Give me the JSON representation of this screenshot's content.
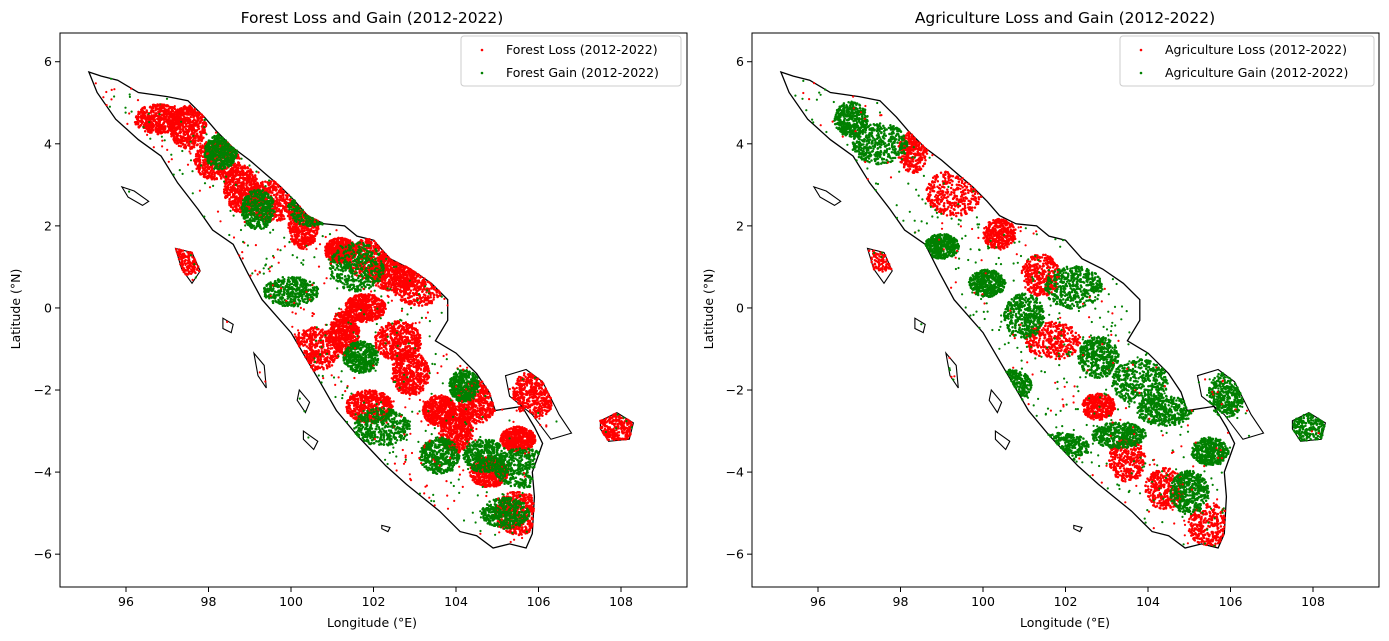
{
  "figure": {
    "panels": [
      {
        "id": "forest",
        "title": "Forest Loss and Gain (2012-2022)",
        "xlabel": "Longitude (°E)",
        "ylabel": "Latitude (°N)",
        "legend": [
          {
            "label": "Forest Loss (2012-2022)",
            "color": "#ff0000"
          },
          {
            "label": "Forest Gain (2012-2022)",
            "color": "#008000"
          }
        ]
      },
      {
        "id": "agriculture",
        "title": "Agriculture Loss and Gain (2012-2022)",
        "xlabel": "Longitude (°E)",
        "ylabel": "Latitude (°N)",
        "legend": [
          {
            "label": "Agriculture Loss (2012-2022)",
            "color": "#ff0000"
          },
          {
            "label": "Agriculture Gain (2012-2022)",
            "color": "#008000"
          }
        ]
      }
    ]
  },
  "chart_data": [
    {
      "type": "scatter",
      "title": "Forest Loss and Gain (2012-2022)",
      "xlabel": "Longitude (°E)",
      "ylabel": "Latitude (°N)",
      "xlim": [
        94.4,
        109.6
      ],
      "ylim": [
        -6.8,
        6.7
      ],
      "xticks": [
        96,
        98,
        100,
        102,
        104,
        106,
        108
      ],
      "yticks": [
        -6,
        -4,
        -2,
        0,
        2,
        4,
        6
      ],
      "xtick_labels": [
        "96",
        "98",
        "100",
        "102",
        "104",
        "106",
        "108"
      ],
      "ytick_labels": [
        "−6",
        "−4",
        "−2",
        "0",
        "2",
        "4",
        "6"
      ],
      "grid": false,
      "legend_position": "top-right",
      "loss_fraction": 0.5,
      "background_map": "Sumatra coastline outline",
      "series": [
        {
          "name": "Forest Loss (2012-2022)",
          "color": "#ff0000",
          "marker": "point",
          "clusters": [
            [
              96.8,
              4.6
            ],
            [
              97.5,
              4.4
            ],
            [
              98.2,
              3.6
            ],
            [
              98.8,
              2.9
            ],
            [
              99.5,
              2.6
            ],
            [
              100.3,
              2.0
            ],
            [
              101.2,
              1.4
            ],
            [
              102.0,
              1.2
            ],
            [
              102.5,
              0.9
            ],
            [
              103.1,
              0.6
            ],
            [
              101.8,
              0.0
            ],
            [
              101.3,
              -0.6
            ],
            [
              100.6,
              -1.0
            ],
            [
              102.6,
              -0.8
            ],
            [
              102.9,
              -1.6
            ],
            [
              101.9,
              -2.4
            ],
            [
              103.6,
              -2.5
            ],
            [
              104.5,
              -2.3
            ],
            [
              104.0,
              -3.0
            ],
            [
              105.5,
              -3.2
            ],
            [
              104.8,
              -4.0
            ],
            [
              105.5,
              -5.0
            ],
            [
              97.4,
              1.3
            ],
            [
              105.9,
              -2.1
            ],
            [
              107.9,
              -2.9
            ]
          ]
        },
        {
          "name": "Forest Gain (2012-2022)",
          "color": "#008000",
          "marker": "point",
          "clusters": [
            [
              98.3,
              3.8
            ],
            [
              99.2,
              2.4
            ],
            [
              100.5,
              2.4
            ],
            [
              101.6,
              1.0
            ],
            [
              101.7,
              -1.2
            ],
            [
              102.2,
              -2.9
            ],
            [
              104.2,
              -1.9
            ],
            [
              103.6,
              -3.6
            ],
            [
              104.7,
              -3.6
            ],
            [
              105.6,
              -3.9
            ],
            [
              105.2,
              -5.0
            ],
            [
              100.0,
              0.4
            ]
          ]
        }
      ]
    },
    {
      "type": "scatter",
      "title": "Agriculture Loss and Gain (2012-2022)",
      "xlabel": "Longitude (°E)",
      "ylabel": "Latitude (°N)",
      "xlim": [
        94.4,
        109.6
      ],
      "ylim": [
        -6.8,
        6.7
      ],
      "xticks": [
        96,
        98,
        100,
        102,
        104,
        106,
        108
      ],
      "yticks": [
        -6,
        -4,
        -2,
        0,
        2,
        4,
        6
      ],
      "xtick_labels": [
        "96",
        "98",
        "100",
        "102",
        "104",
        "106",
        "108"
      ],
      "ytick_labels": [
        "−6",
        "−4",
        "−2",
        "0",
        "2",
        "4",
        "6"
      ],
      "grid": false,
      "legend_position": "top-right",
      "loss_fraction": 0.35,
      "background_map": "Sumatra coastline outline",
      "series": [
        {
          "name": "Agriculture Loss (2012-2022)",
          "color": "#ff0000",
          "marker": "point",
          "clusters": [
            [
              98.3,
              3.8
            ],
            [
              99.3,
              2.8
            ],
            [
              100.4,
              1.8
            ],
            [
              101.4,
              0.8
            ],
            [
              101.7,
              -0.8
            ],
            [
              103.5,
              -3.7
            ],
            [
              104.4,
              -4.4
            ],
            [
              105.5,
              -5.3
            ],
            [
              97.4,
              1.3
            ],
            [
              102.8,
              -2.4
            ]
          ]
        },
        {
          "name": "Agriculture Gain (2012-2022)",
          "color": "#008000",
          "marker": "point",
          "clusters": [
            [
              96.8,
              4.6
            ],
            [
              97.5,
              4.0
            ],
            [
              99.0,
              1.5
            ],
            [
              100.1,
              0.6
            ],
            [
              101.0,
              -0.2
            ],
            [
              102.2,
              0.5
            ],
            [
              102.8,
              -1.2
            ],
            [
              103.8,
              -1.8
            ],
            [
              104.4,
              -2.5
            ],
            [
              103.3,
              -3.1
            ],
            [
              105.5,
              -3.5
            ],
            [
              105.0,
              -4.5
            ],
            [
              105.9,
              -2.1
            ],
            [
              107.9,
              -2.9
            ],
            [
              100.7,
              -1.9
            ],
            [
              101.9,
              -3.4
            ]
          ]
        }
      ]
    }
  ]
}
